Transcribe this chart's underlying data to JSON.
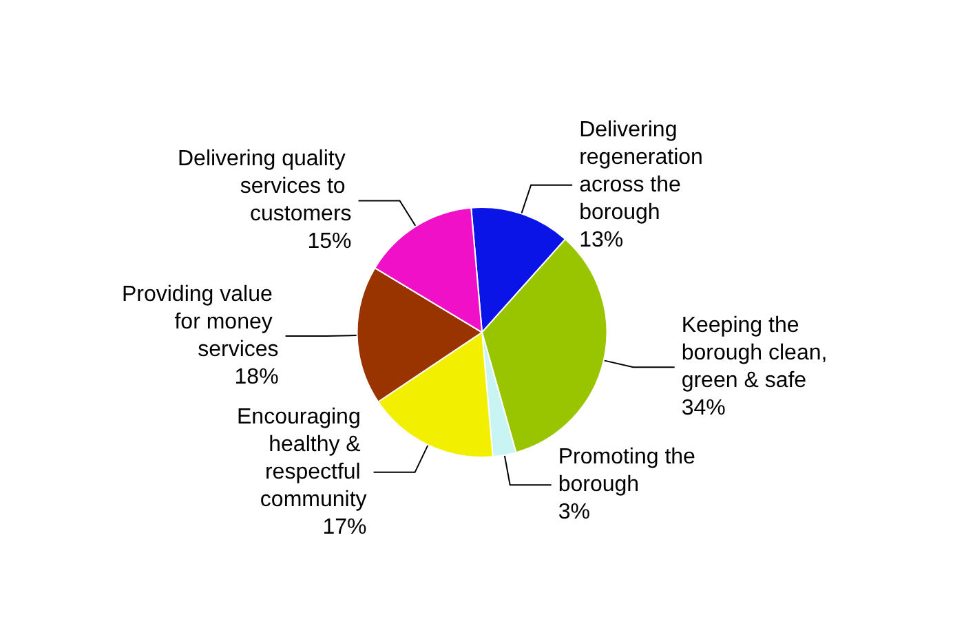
{
  "chart_data": {
    "type": "pie",
    "categories": [
      "Delivering regeneration across the borough",
      "Keeping the borough clean, green & safe",
      "Promoting the borough",
      "Encouraging healthy & respectful community",
      "Providing value for money services",
      "Delivering quality services to customers"
    ],
    "values": [
      13,
      34,
      3,
      17,
      18,
      15
    ],
    "value_labels": [
      "13%",
      "34%",
      "3%",
      "17%",
      "18%",
      "15%"
    ],
    "colors": [
      "#0a14e6",
      "#99c400",
      "#c8f4f4",
      "#f2f000",
      "#993300",
      "#f010c8"
    ],
    "legend": false
  }
}
